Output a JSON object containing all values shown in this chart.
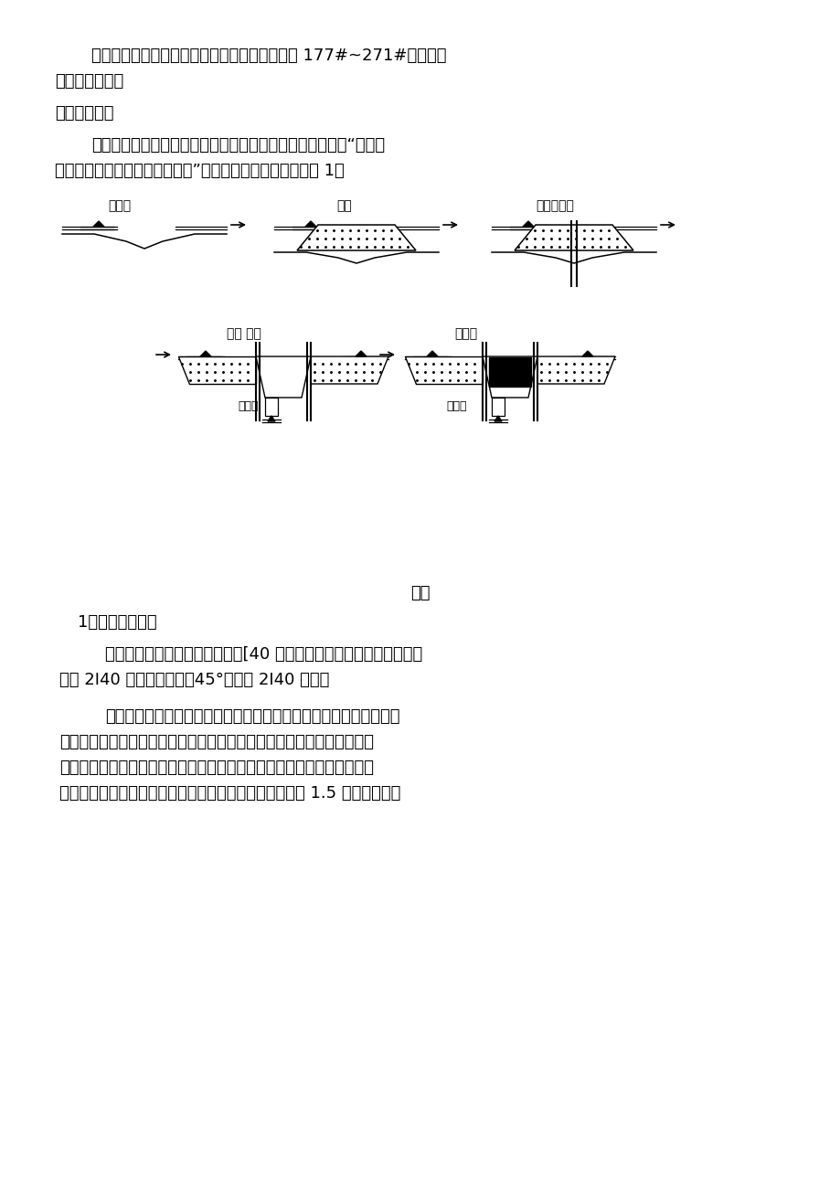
{
  "bg_color": "#ffffff",
  "text_color": "#000000",
  "page_width": 9.2,
  "page_height": 13.02,
  "para1": "某某高速鐵路六标四工区一作业区所辖某某西桥 177#~271#增段水中",
  "para1b": "承台基坑施工。",
  "heading1": "五、施工方案",
  "para2a": "因本作业区段内河流、蟹塘的水深和流速均比较小，故采取“填筑作",
  "para2b": "业平台，插打钉板桩，基坑开挖”施工方案。其工艺流程见图 1：",
  "label_shi_qian": "施工前",
  "label_tian_zhu": "填筑",
  "label_da_gang": "打钉板桩护",
  "label_kai_wa": "开挟 降水",
  "label_cheng_tai": "承施工",
  "label_ji_shui": "集水井",
  "label_ji_shui2": "集水井",
  "fig_caption": "图一",
  "heading2": "1、支护材料选择",
  "para3a": "支护材料选择强度、刚度较高的[40 槽钉作为钉板桩的支护材料，边梁",
  "para3b": "采用 2I40 工字钉，斜撑（45°）采用 2I40 工字钉",
  "para4a": "用草袋或编织袋装土或沙先堆筑围堰，然后再往围堰中填土筑岛。筑",
  "para4b": "岛的大小应满足承台开挖、基坑防护、基坑降水、施工机械操作等方面的",
  "para4c": "要求，人工筑岛完成以后，在测量专业人员用白灰放出承台基坑轮廓线，",
  "para4d": "并测出拟开挖深度。在承台设计尺寸的基础上每边各加宽 1.5 米作为拟开挖"
}
